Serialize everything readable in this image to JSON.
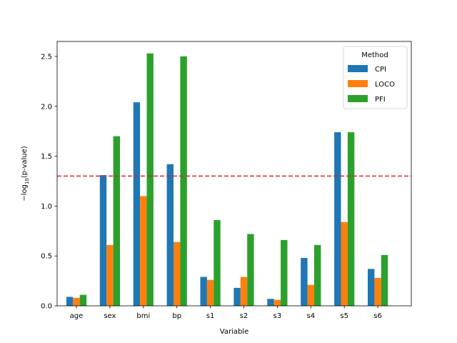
{
  "chart_data": {
    "type": "bar",
    "categories": [
      "age",
      "sex",
      "bmi",
      "bp",
      "s1",
      "s2",
      "s3",
      "s4",
      "s5",
      "s6"
    ],
    "series": [
      {
        "name": "CPI",
        "color": "#1f77b4",
        "values": [
          0.09,
          1.31,
          2.04,
          1.42,
          0.29,
          0.18,
          0.07,
          0.48,
          1.74,
          0.37
        ]
      },
      {
        "name": "LOCO",
        "color": "#ff7f0e",
        "values": [
          0.08,
          0.61,
          1.1,
          0.64,
          0.26,
          0.29,
          0.06,
          0.21,
          0.84,
          0.28
        ]
      },
      {
        "name": "PFI",
        "color": "#2ca02c",
        "values": [
          0.11,
          1.7,
          2.53,
          2.5,
          0.86,
          0.72,
          0.66,
          0.61,
          1.74,
          0.51
        ]
      }
    ],
    "xlabel": "Variable",
    "ylabel_prefix": "−log",
    "ylabel_sub": "10",
    "ylabel_suffix": "(p-value)",
    "ylim": [
      0,
      2.65
    ],
    "yticks": [
      0.0,
      0.5,
      1.0,
      1.5,
      2.0,
      2.5
    ],
    "ytick_labels": [
      "0.0",
      "0.5",
      "1.0",
      "1.5",
      "2.0",
      "2.5"
    ],
    "threshold": {
      "value": 1.301,
      "color": "#d62728",
      "style": "dashed"
    },
    "legend": {
      "title": "Method",
      "placement": "top-right"
    },
    "grid": false
  }
}
